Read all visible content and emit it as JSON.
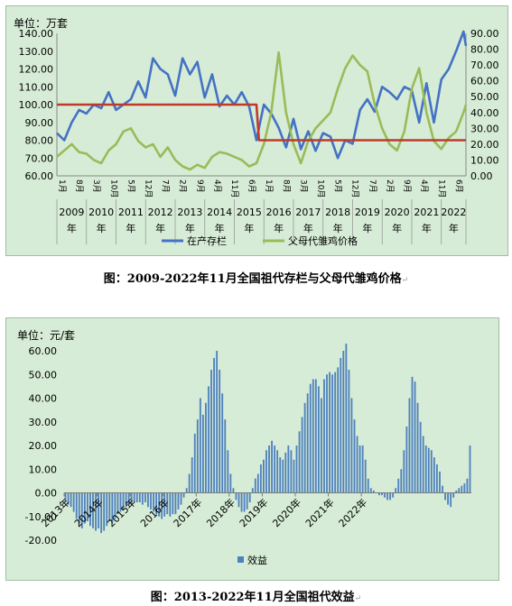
{
  "chart1": {
    "unit": "单位：万套",
    "caption": "图：2009-2022年11月全国祖代存栏与父母代雏鸡价格",
    "caption_mark": "↵",
    "left_ticks": [
      "140.00",
      "130.00",
      "120.00",
      "110.00",
      "100.00",
      "90.00",
      "80.00",
      "70.00",
      "60.00"
    ],
    "right_ticks": [
      "90.00",
      "80.00",
      "70.00",
      "60.00",
      "50.00",
      "40.00",
      "30.00",
      "20.00",
      "10.00",
      "0.00"
    ],
    "years": [
      "2009\n年",
      "2010\n年",
      "2011\n年",
      "2012\n年",
      "2013\n年",
      "2014\n年",
      "2015\n年",
      "2016\n年",
      "2017\n年",
      "2018\n年",
      "2019\n年",
      "2020\n年",
      "2021\n年",
      "2022\n年"
    ],
    "month_labels": [
      "1月",
      "8月",
      "3月",
      "10月",
      "5月",
      "12月",
      "7月",
      "2月",
      "9月",
      "4月",
      "11月",
      "6月",
      "1月",
      "8月",
      "3月",
      "10月",
      "5月",
      "12月",
      "7月",
      "2月",
      "9月",
      "4月",
      "11月",
      "6月"
    ],
    "legend": [
      "在产存栏",
      "父母代雏鸡价格"
    ]
  },
  "chart2": {
    "unit": "单位：元/套",
    "caption": "图：2013-2022年11月全国祖代效益",
    "caption_mark": "↵",
    "y_ticks": [
      "60.00",
      "50.00",
      "40.00",
      "30.00",
      "20.00",
      "10.00",
      "0.00",
      "-10.00",
      "-20.00"
    ],
    "x_years": [
      "2013年",
      "2014年",
      "2015年",
      "2016年",
      "2017年",
      "2018年",
      "2019年",
      "2020年",
      "2021年",
      "2022年"
    ],
    "legend": "效益"
  },
  "colors": {
    "stock": "#4472c4",
    "price": "#9bbb59",
    "ref_line": "#c0392b",
    "bar": "#4f81bd"
  },
  "chart_data": [
    {
      "type": "line",
      "title": "",
      "y_left_range": [
        60,
        140
      ],
      "y_right_range": [
        0,
        90
      ],
      "x_range": [
        "2009-01",
        "2022-11"
      ],
      "series": [
        {
          "name": "在产存栏",
          "axis": "left",
          "points": [
            [
              "2009-01",
              84
            ],
            [
              "2009-04",
              80
            ],
            [
              "2009-07",
              90
            ],
            [
              "2009-10",
              97
            ],
            [
              "2010-01",
              95
            ],
            [
              "2010-04",
              100
            ],
            [
              "2010-07",
              98
            ],
            [
              "2010-10",
              107
            ],
            [
              "2011-01",
              97
            ],
            [
              "2011-04",
              100
            ],
            [
              "2011-07",
              103
            ],
            [
              "2011-10",
              113
            ],
            [
              "2012-01",
              104
            ],
            [
              "2012-04",
              126
            ],
            [
              "2012-07",
              120
            ],
            [
              "2012-10",
              117
            ],
            [
              "2013-01",
              105
            ],
            [
              "2013-04",
              126
            ],
            [
              "2013-07",
              117
            ],
            [
              "2013-10",
              124
            ],
            [
              "2014-01",
              104
            ],
            [
              "2014-04",
              117
            ],
            [
              "2014-07",
              99
            ],
            [
              "2014-10",
              105
            ],
            [
              "2015-01",
              100
            ],
            [
              "2015-04",
              107
            ],
            [
              "2015-07",
              99
            ],
            [
              "2015-10",
              80
            ],
            [
              "2016-01",
              100
            ],
            [
              "2016-04",
              95
            ],
            [
              "2016-07",
              87
            ],
            [
              "2016-10",
              76
            ],
            [
              "2017-01",
              92
            ],
            [
              "2017-04",
              75
            ],
            [
              "2017-07",
              85
            ],
            [
              "2017-10",
              74
            ],
            [
              "2018-01",
              84
            ],
            [
              "2018-04",
              82
            ],
            [
              "2018-07",
              70
            ],
            [
              "2018-10",
              80
            ],
            [
              "2019-01",
              78
            ],
            [
              "2019-04",
              97
            ],
            [
              "2019-07",
              103
            ],
            [
              "2019-10",
              96
            ],
            [
              "2020-01",
              110
            ],
            [
              "2020-04",
              107
            ],
            [
              "2020-07",
              103
            ],
            [
              "2020-10",
              110
            ],
            [
              "2021-01",
              108
            ],
            [
              "2021-04",
              90
            ],
            [
              "2021-07",
              112
            ],
            [
              "2021-10",
              90
            ],
            [
              "2022-01",
              114
            ],
            [
              "2022-04",
              120
            ],
            [
              "2022-07",
              130
            ],
            [
              "2022-10",
              141
            ],
            [
              "2022-11",
              133
            ]
          ]
        },
        {
          "name": "父母代雏鸡价格",
          "axis": "right",
          "points": [
            [
              "2009-01",
              12
            ],
            [
              "2009-04",
              16
            ],
            [
              "2009-07",
              20
            ],
            [
              "2009-10",
              15
            ],
            [
              "2010-01",
              14
            ],
            [
              "2010-04",
              10
            ],
            [
              "2010-07",
              8
            ],
            [
              "2010-10",
              16
            ],
            [
              "2011-01",
              20
            ],
            [
              "2011-04",
              28
            ],
            [
              "2011-07",
              30
            ],
            [
              "2011-10",
              22
            ],
            [
              "2012-01",
              18
            ],
            [
              "2012-04",
              20
            ],
            [
              "2012-07",
              12
            ],
            [
              "2012-10",
              18
            ],
            [
              "2013-01",
              10
            ],
            [
              "2013-04",
              6
            ],
            [
              "2013-07",
              4
            ],
            [
              "2013-10",
              7
            ],
            [
              "2014-01",
              5
            ],
            [
              "2014-04",
              12
            ],
            [
              "2014-07",
              15
            ],
            [
              "2014-10",
              14
            ],
            [
              "2015-01",
              12
            ],
            [
              "2015-04",
              10
            ],
            [
              "2015-07",
              6
            ],
            [
              "2015-10",
              8
            ],
            [
              "2016-01",
              20
            ],
            [
              "2016-04",
              40
            ],
            [
              "2016-07",
              78
            ],
            [
              "2016-10",
              40
            ],
            [
              "2017-01",
              20
            ],
            [
              "2017-04",
              8
            ],
            [
              "2017-07",
              22
            ],
            [
              "2017-10",
              30
            ],
            [
              "2018-01",
              35
            ],
            [
              "2018-04",
              40
            ],
            [
              "2018-07",
              55
            ],
            [
              "2018-10",
              68
            ],
            [
              "2019-01",
              76
            ],
            [
              "2019-04",
              70
            ],
            [
              "2019-07",
              66
            ],
            [
              "2019-10",
              45
            ],
            [
              "2020-01",
              30
            ],
            [
              "2020-04",
              20
            ],
            [
              "2020-07",
              16
            ],
            [
              "2020-10",
              28
            ],
            [
              "2021-01",
              55
            ],
            [
              "2021-04",
              68
            ],
            [
              "2021-07",
              40
            ],
            [
              "2021-10",
              22
            ],
            [
              "2022-01",
              17
            ],
            [
              "2022-04",
              24
            ],
            [
              "2022-07",
              28
            ],
            [
              "2022-10",
              40
            ],
            [
              "2022-11",
              45
            ]
          ]
        },
        {
          "name": "",
          "axis": "left",
          "points": [
            [
              "2009-01",
              100
            ],
            [
              "2015-10",
              100
            ],
            [
              "2015-11",
              80
            ],
            [
              "2022-11",
              80
            ]
          ]
        }
      ],
      "grid": false,
      "legend_position": "bottom"
    },
    {
      "type": "bar",
      "title": "",
      "ylabel": "元/套",
      "ylim": [
        -20,
        60
      ],
      "x_range": [
        "2013-01",
        "2022-11"
      ],
      "series": [
        {
          "name": "效益",
          "values": [
            -4,
            -5,
            -6,
            -8,
            -11,
            -13,
            -15,
            -13,
            -12,
            -14,
            -15,
            -16,
            -15,
            -17,
            -16,
            -14,
            -12,
            -13,
            -11,
            -9,
            -8,
            -7,
            -6,
            -5,
            -5,
            -4,
            -4,
            -4,
            -5,
            -4,
            -6,
            -7,
            -8,
            -9,
            -10,
            -11,
            -10,
            -9,
            -10,
            -9,
            -9,
            -7,
            -5,
            -2,
            2,
            8,
            15,
            25,
            31,
            40,
            33,
            38,
            45,
            52,
            57,
            60,
            52,
            42,
            31,
            18,
            8,
            2,
            -3,
            -6,
            -8,
            -8,
            -7,
            -4,
            2,
            6,
            8,
            12,
            14,
            18,
            20,
            22,
            20,
            18,
            15,
            14,
            17,
            20,
            18,
            14,
            20,
            26,
            32,
            38,
            42,
            46,
            48,
            48,
            45,
            40,
            48,
            50,
            51,
            50,
            51,
            53,
            57,
            60,
            63,
            52,
            40,
            31,
            24,
            20,
            20,
            14,
            6,
            2,
            1,
            0,
            -1,
            -1,
            -2,
            -3,
            -3,
            -2,
            2,
            6,
            10,
            18,
            28,
            40,
            49,
            47,
            38,
            30,
            24,
            20,
            19,
            18,
            15,
            12,
            9,
            3,
            -3,
            -5,
            -6,
            -2,
            1,
            2,
            3,
            4,
            6,
            20
          ]
        }
      ],
      "legend_position": "bottom"
    }
  ]
}
